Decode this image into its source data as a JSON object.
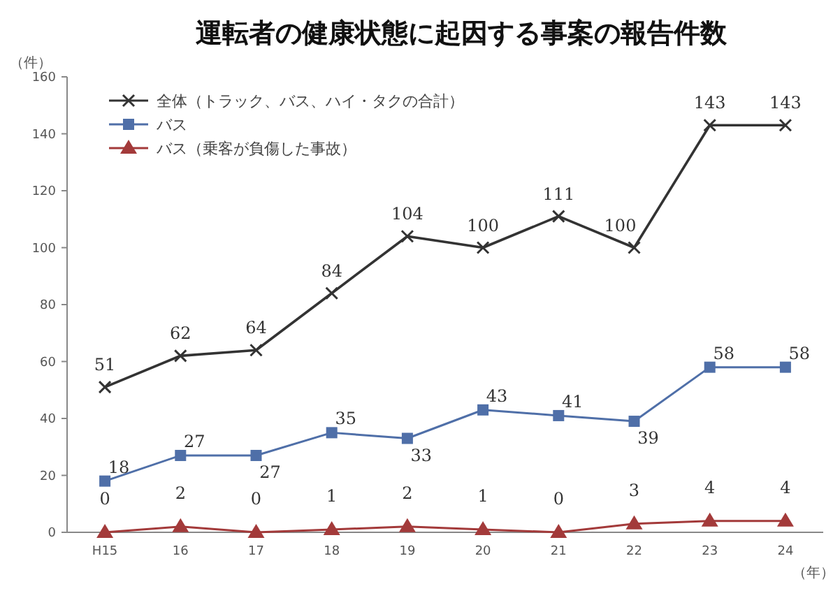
{
  "chart_data": {
    "type": "line",
    "title": "運転者の健康状態に起因する事案の報告件数",
    "ylabel": "（件）",
    "xlabel": "（年）",
    "categories": [
      "H15",
      "16",
      "17",
      "18",
      "19",
      "20",
      "21",
      "22",
      "23",
      "24"
    ],
    "ylim": [
      0,
      160
    ],
    "yticks": [
      0,
      20,
      40,
      60,
      80,
      100,
      120,
      140,
      160
    ],
    "grid": false,
    "legend": "top left",
    "data_labels": true,
    "series": [
      {
        "name": "全体（トラック、バス、ハイ・タクの合計）",
        "color": "#333333",
        "marker": "cross",
        "values": [
          51,
          62,
          64,
          84,
          104,
          100,
          111,
          100,
          143,
          143
        ]
      },
      {
        "name": "バス",
        "color": "#4f6fa8",
        "marker": "square",
        "values": [
          18,
          27,
          27,
          35,
          33,
          43,
          41,
          39,
          58,
          58
        ]
      },
      {
        "name": "バス（乗客が負傷した事故）",
        "color": "#a33a3a",
        "marker": "triangle",
        "values": [
          0,
          2,
          0,
          1,
          2,
          1,
          0,
          3,
          4,
          4
        ]
      }
    ]
  }
}
